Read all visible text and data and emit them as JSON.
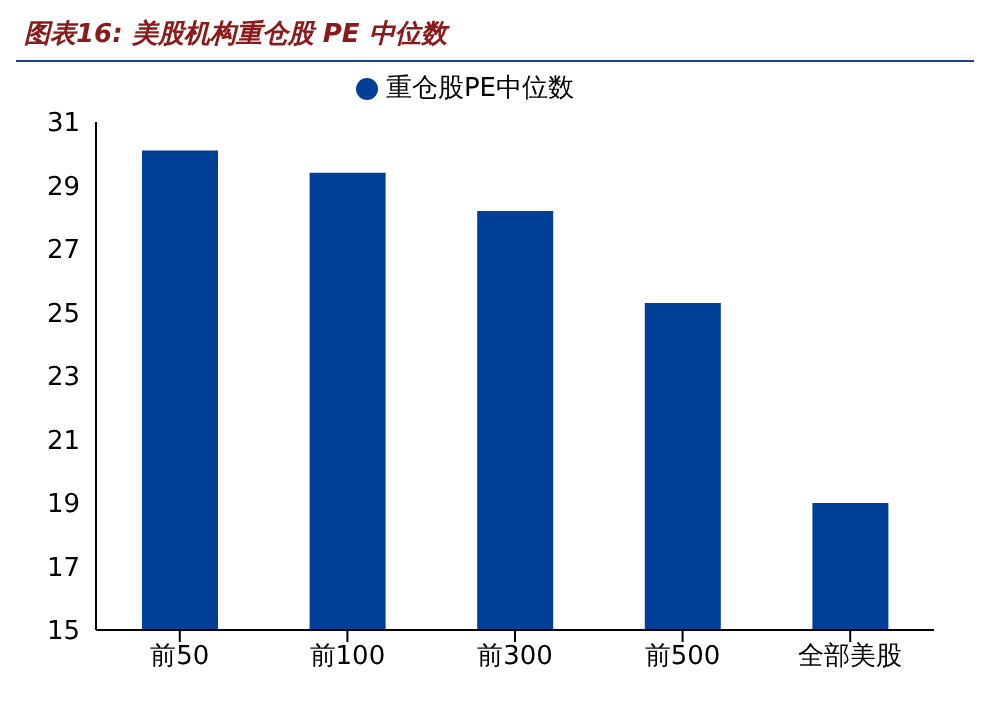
{
  "chart_data": {
    "type": "bar",
    "title": "图表16: 美股机构重仓股 PE 中位数",
    "categories": [
      "前50",
      "前100",
      "前300",
      "前500",
      "全部美股"
    ],
    "series": [
      {
        "name": "重仓股PE中位数",
        "color": "#003f98",
        "values": [
          30.1,
          29.4,
          28.2,
          25.3,
          19.0
        ]
      }
    ],
    "ylim": [
      15,
      31
    ],
    "yticks": [
      15,
      17,
      19,
      21,
      23,
      25,
      27,
      29,
      31
    ],
    "grid": false,
    "legend": "top"
  }
}
